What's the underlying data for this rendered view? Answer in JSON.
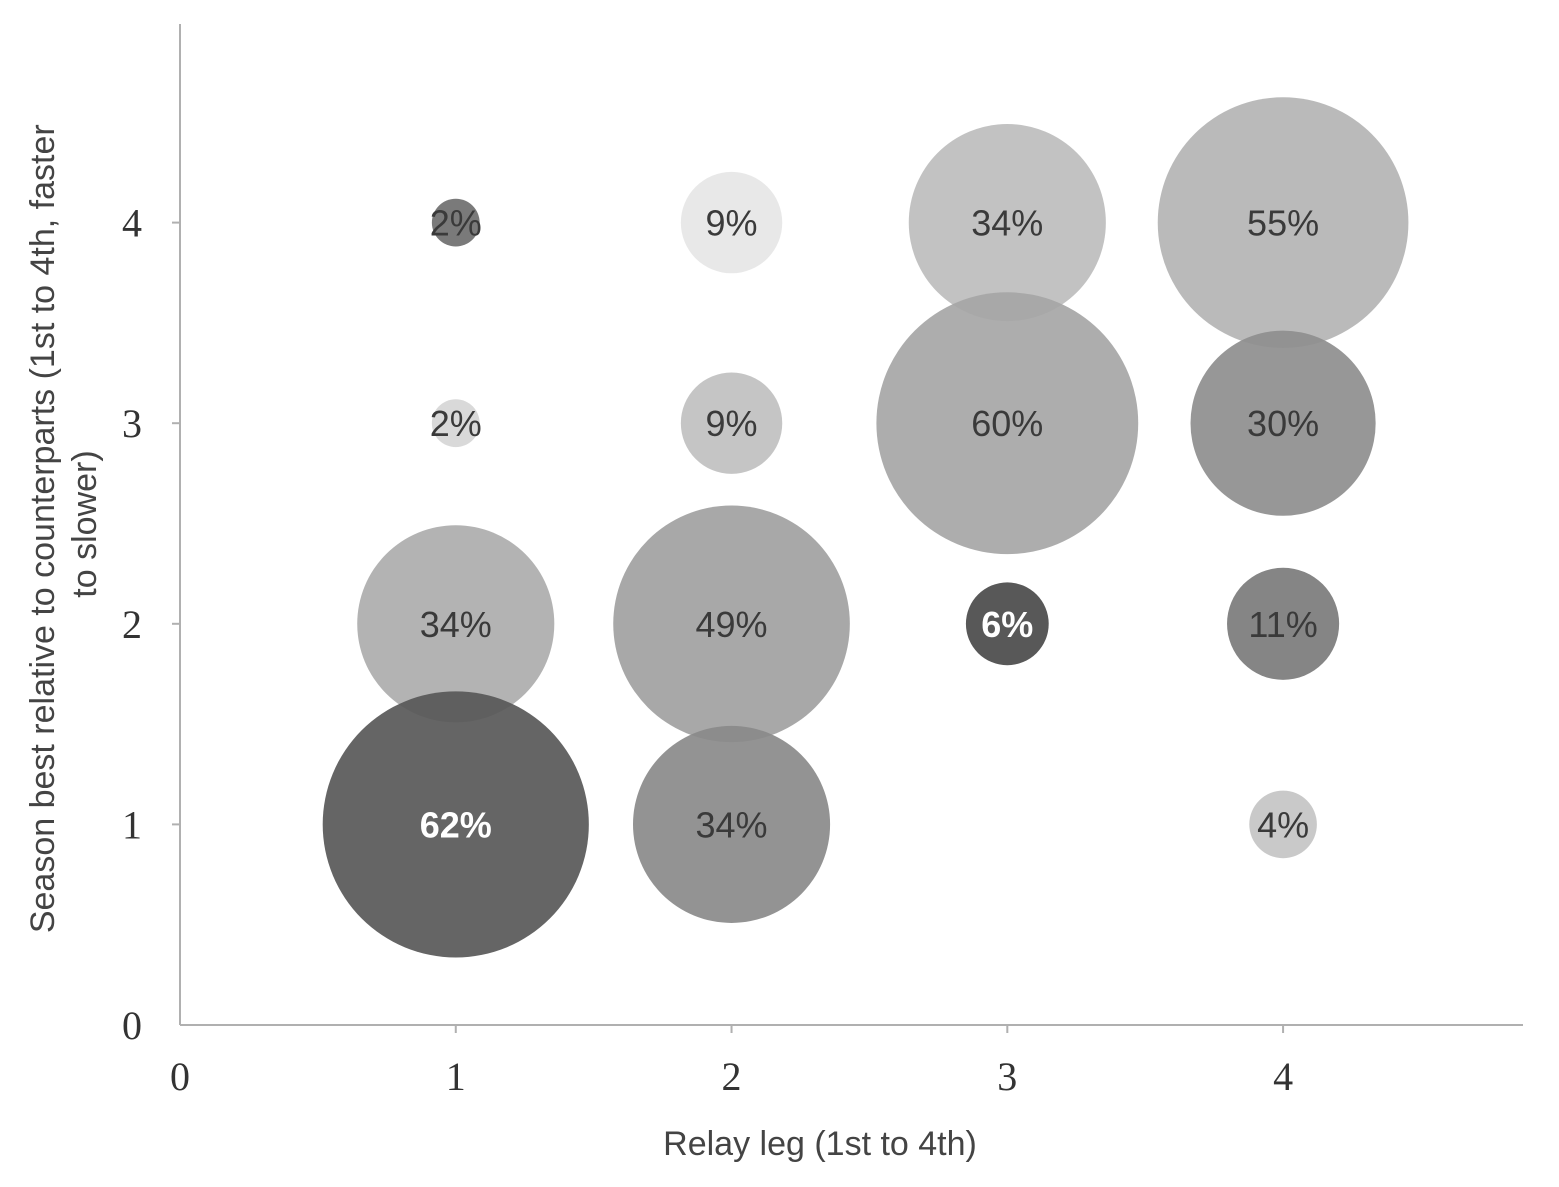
{
  "chart_data": {
    "type": "bubble",
    "xlabel": "Relay leg (1st to 4th)",
    "ylabel": "Season best relative to counterparts (1st to 4th, faster to slower)",
    "xlim": [
      0,
      4.87
    ],
    "ylim": [
      0,
      4.99
    ],
    "x_ticks": [
      0,
      1,
      2,
      3,
      4
    ],
    "y_ticks": [
      0,
      1,
      2,
      3,
      4
    ],
    "grid": false,
    "points": [
      {
        "x": 1,
        "y": 4,
        "value": 2,
        "label": "2%",
        "color": "#6f6f6f"
      },
      {
        "x": 2,
        "y": 4,
        "value": 9,
        "label": "9%",
        "color": "#e6e6e6"
      },
      {
        "x": 3,
        "y": 4,
        "value": 34,
        "label": "34%",
        "color": "#bdbdbd"
      },
      {
        "x": 4,
        "y": 4,
        "value": 55,
        "label": "55%",
        "color": "#b4b4b4"
      },
      {
        "x": 1,
        "y": 3,
        "value": 2,
        "label": "2%",
        "color": "#d6d6d6"
      },
      {
        "x": 2,
        "y": 3,
        "value": 9,
        "label": "9%",
        "color": "#c0c0c0"
      },
      {
        "x": 3,
        "y": 3,
        "value": 60,
        "label": "60%",
        "color": "#a6a6a6"
      },
      {
        "x": 4,
        "y": 3,
        "value": 30,
        "label": "30%",
        "color": "#8e8e8e"
      },
      {
        "x": 1,
        "y": 2,
        "value": 34,
        "label": "34%",
        "color": "#adadad"
      },
      {
        "x": 2,
        "y": 2,
        "value": 49,
        "label": "49%",
        "color": "#a1a1a1"
      },
      {
        "x": 3,
        "y": 2,
        "value": 6,
        "label": "6%",
        "color": "#4a4a4a"
      },
      {
        "x": 4,
        "y": 2,
        "value": 11,
        "label": "11%",
        "color": "#7b7b7b"
      },
      {
        "x": 1,
        "y": 1,
        "value": 62,
        "label": "62%",
        "color": "#585858"
      },
      {
        "x": 2,
        "y": 1,
        "value": 34,
        "label": "34%",
        "color": "#8a8a8a"
      },
      {
        "x": 4,
        "y": 1,
        "value": 4,
        "label": "4%",
        "color": "#c4c4c4"
      }
    ]
  }
}
